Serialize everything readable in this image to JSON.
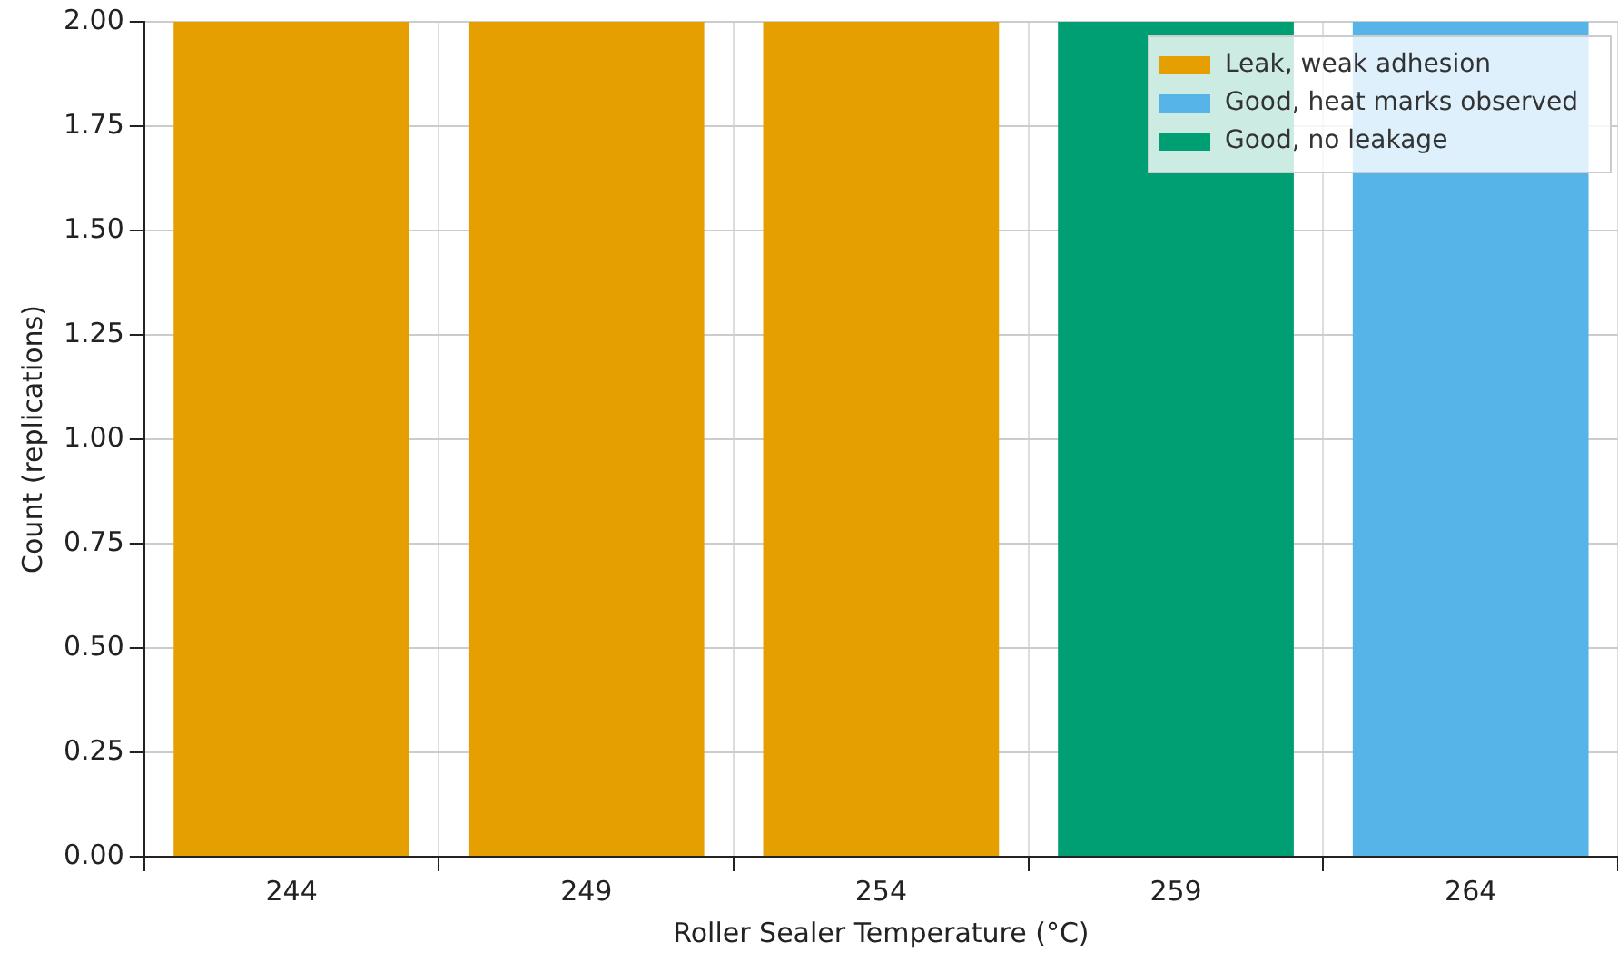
{
  "chart_data": {
    "type": "bar",
    "xlabel": "Roller Sealer Temperature (°C)",
    "ylabel": "Count (replications)",
    "categories": [
      "244",
      "249",
      "254",
      "259",
      "264"
    ],
    "series": [
      {
        "name": "Leak, weak adhesion",
        "color": "#e69f00",
        "values": [
          2,
          2,
          2,
          0,
          0
        ]
      },
      {
        "name": "Good, heat marks observed",
        "color": "#56b4e9",
        "values": [
          0,
          0,
          0,
          0,
          2
        ]
      },
      {
        "name": "Good, no leakage",
        "color": "#009e73",
        "values": [
          0,
          0,
          0,
          2,
          0
        ]
      }
    ],
    "stacked": true,
    "ylim": [
      0,
      2
    ],
    "yticks": [
      {
        "value": 0,
        "label": "0.00"
      },
      {
        "value": 0.25,
        "label": "0.25"
      },
      {
        "value": 0.5,
        "label": "0.50"
      },
      {
        "value": 0.75,
        "label": "0.75"
      },
      {
        "value": 1,
        "label": "1.00"
      },
      {
        "value": 1.25,
        "label": "1.25"
      },
      {
        "value": 1.5,
        "label": "1.50"
      },
      {
        "value": 1.75,
        "label": "1.75"
      },
      {
        "value": 2,
        "label": "2.00"
      }
    ],
    "grid": true,
    "legend": "top right"
  }
}
